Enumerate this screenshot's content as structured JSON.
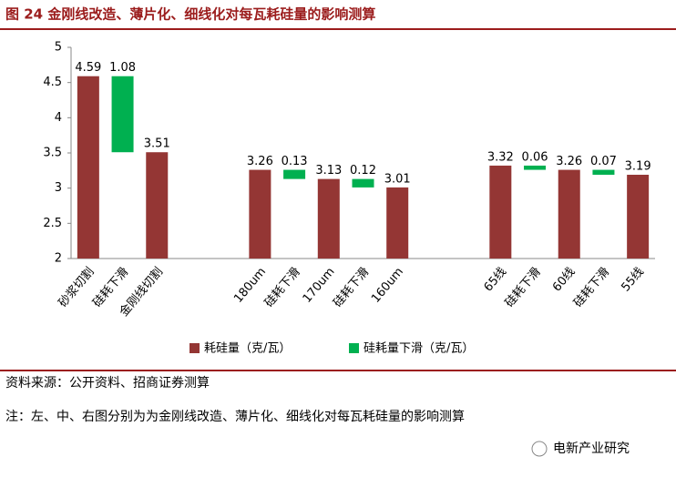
{
  "chart_data": {
    "type": "waterfall",
    "title": "图 24  金刚线改造、薄片化、细线化对每瓦耗硅量的影响测算",
    "source": "资料来源：公开资料、招商证券测算",
    "note": "注：左、中、右图分别为为金刚线改造、薄片化、细线化对每瓦耗硅量的影响测算",
    "watermark": "电新产业研究",
    "categories": [
      "砂浆切割",
      "硅耗下滑",
      "金刚线切割",
      null,
      null,
      "180um",
      "硅耗下滑",
      "170um",
      "硅耗下滑",
      "160um",
      null,
      null,
      "65线",
      "硅耗下滑",
      "60线",
      "硅耗下滑",
      "55线"
    ],
    "series": [
      {
        "name": "耗硅量（克/瓦）",
        "color": "#943634",
        "values": [
          4.59,
          null,
          3.51,
          null,
          null,
          3.26,
          null,
          3.13,
          null,
          3.01,
          null,
          null,
          3.32,
          null,
          3.26,
          null,
          3.19
        ]
      },
      {
        "name": "硅耗量下滑（克/瓦）",
        "color": "#00b050",
        "values": [
          null,
          1.08,
          null,
          null,
          null,
          null,
          0.13,
          null,
          0.12,
          null,
          null,
          null,
          null,
          0.06,
          null,
          0.07,
          null
        ]
      }
    ],
    "ylim": [
      2,
      5
    ],
    "yticks": [
      2,
      2.5,
      3,
      3.5,
      4,
      4.5,
      5
    ]
  }
}
